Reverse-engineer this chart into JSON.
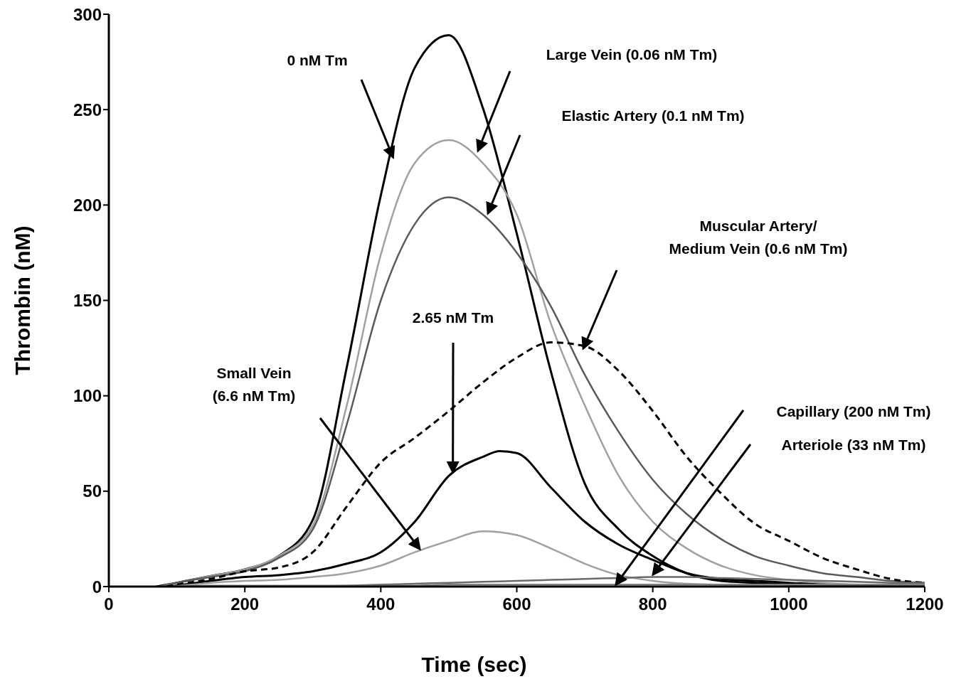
{
  "chart_data": {
    "type": "line",
    "xlabel": "Time (sec)",
    "ylabel": "Thrombin (nM)",
    "xlim": [
      0,
      1200
    ],
    "xticks": [
      0,
      200,
      400,
      600,
      800,
      1000,
      1200
    ],
    "ylim": [
      0,
      300
    ],
    "yticks": [
      0,
      50,
      100,
      150,
      200,
      250,
      300
    ],
    "legend": false,
    "grid": false,
    "marker": "none",
    "annotations": [
      {
        "text": "0 nM Tm",
        "x": 418,
        "y": 225
      },
      "Large Vein (0.06 nM Tm)",
      "Elastic Artery (0.1 nM Tm)",
      "Muscular Artery/\nMedium Vein (0.6 nM Tm)",
      {
        "text": "2.65 nM Tm",
        "x": 506,
        "y": 60
      },
      "Small Vein\n(6.6 nM Tm)",
      "Arteriole (33 nM Tm)",
      "Capillary (200 nM Tm)"
    ],
    "series": [
      {
        "color": "#000000",
        "line_style": "solid",
        "x": [
          70,
          100,
          150,
          200,
          250,
          300,
          350,
          400,
          450,
          500,
          550,
          600,
          650,
          700,
          750,
          800,
          850,
          900,
          950,
          1000,
          1050,
          1100,
          1150,
          1200
        ],
        "values": [
          0,
          2,
          5.5,
          9,
          16,
          35,
          115,
          205,
          272,
          289,
          251,
          185,
          113,
          54,
          30,
          16,
          7,
          3,
          2,
          1,
          0.5,
          0,
          0,
          0
        ]
      },
      {
        "color": "#a0a0a0",
        "line_style": "solid",
        "x": [
          75,
          100,
          150,
          200,
          250,
          300,
          350,
          400,
          450,
          500,
          550,
          600,
          650,
          700,
          750,
          800,
          850,
          900,
          950,
          1000,
          1050,
          1100,
          1150,
          1200
        ],
        "values": [
          0,
          2,
          5.5,
          9,
          16,
          32,
          95,
          174,
          222,
          234,
          222,
          195,
          138,
          95,
          58,
          34,
          20,
          11,
          6,
          3.5,
          2,
          1,
          0.5,
          0.5
        ]
      },
      {
        "color": "#5a5a5a",
        "line_style": "solid",
        "x": [
          80,
          100,
          150,
          200,
          250,
          300,
          350,
          400,
          450,
          500,
          550,
          600,
          650,
          700,
          750,
          800,
          850,
          900,
          950,
          1000,
          1050,
          1100,
          1150,
          1200
        ],
        "values": [
          0,
          2,
          5,
          8,
          15,
          30,
          85,
          150,
          190,
          204,
          195,
          175,
          147,
          111,
          81,
          56,
          38,
          25,
          16,
          11,
          7,
          5,
          3,
          2
        ]
      },
      {
        "color": "#000000",
        "line_style": "dashed",
        "x": [
          85,
          100,
          150,
          200,
          250,
          300,
          350,
          400,
          450,
          500,
          550,
          600,
          650,
          700,
          750,
          800,
          850,
          900,
          950,
          1000,
          1050,
          1100,
          1150,
          1200
        ],
        "values": [
          0,
          1,
          4,
          8,
          10,
          18,
          42,
          65,
          78,
          92,
          107,
          120,
          128,
          126,
          113,
          92,
          68,
          49,
          33,
          24,
          15,
          9,
          4,
          2
        ]
      },
      {
        "color": "#000000",
        "line_style": "solid",
        "x": [
          90,
          150,
          200,
          250,
          300,
          350,
          400,
          450,
          500,
          550,
          575,
          600,
          650,
          700,
          750,
          800,
          850,
          900,
          950,
          1000,
          1050,
          1100,
          1150,
          1200
        ],
        "values": [
          0,
          3,
          5,
          6,
          8,
          12,
          18,
          34,
          58,
          68,
          71,
          70,
          52,
          34,
          22,
          14,
          7,
          4,
          3,
          2,
          1,
          0.5,
          0,
          0
        ]
      },
      {
        "color": "#a0a0a0",
        "line_style": "solid",
        "x": [
          95,
          150,
          200,
          250,
          300,
          350,
          400,
          450,
          500,
          550,
          600,
          650,
          700,
          750,
          800,
          850,
          900,
          950,
          1000,
          1050,
          1100,
          1150,
          1200
        ],
        "values": [
          0,
          2,
          3,
          3.5,
          5,
          7,
          11,
          18,
          24,
          29,
          27,
          20,
          12,
          6,
          3,
          1.5,
          1,
          0.5,
          0,
          0,
          0,
          0,
          0
        ]
      },
      {
        "color": "#6a6a6a",
        "line_style": "solid",
        "x": [
          300,
          350,
          400,
          450,
          500,
          550,
          600,
          650,
          700,
          750,
          800,
          850,
          900,
          950,
          1000,
          1050,
          1100,
          1150,
          1200
        ],
        "values": [
          0,
          0.5,
          1,
          1.5,
          2,
          2.5,
          3,
          3.5,
          4,
          4.5,
          5,
          5,
          4.5,
          4,
          3.5,
          3,
          2.5,
          2,
          2
        ]
      },
      {
        "color": "#808080",
        "line_style": "solid",
        "x": [
          105,
          150,
          200,
          250,
          300,
          350,
          400,
          450,
          500,
          550,
          600,
          650,
          700,
          750,
          800,
          850,
          900,
          950,
          1000,
          1050,
          1100,
          1150,
          1200
        ],
        "values": [
          0,
          0.5,
          0.5,
          0.5,
          0.5,
          0.5,
          0.5,
          0.5,
          1,
          1,
          1,
          1,
          1,
          1,
          1,
          1,
          1,
          1,
          1,
          1,
          1,
          1,
          1
        ]
      }
    ]
  }
}
